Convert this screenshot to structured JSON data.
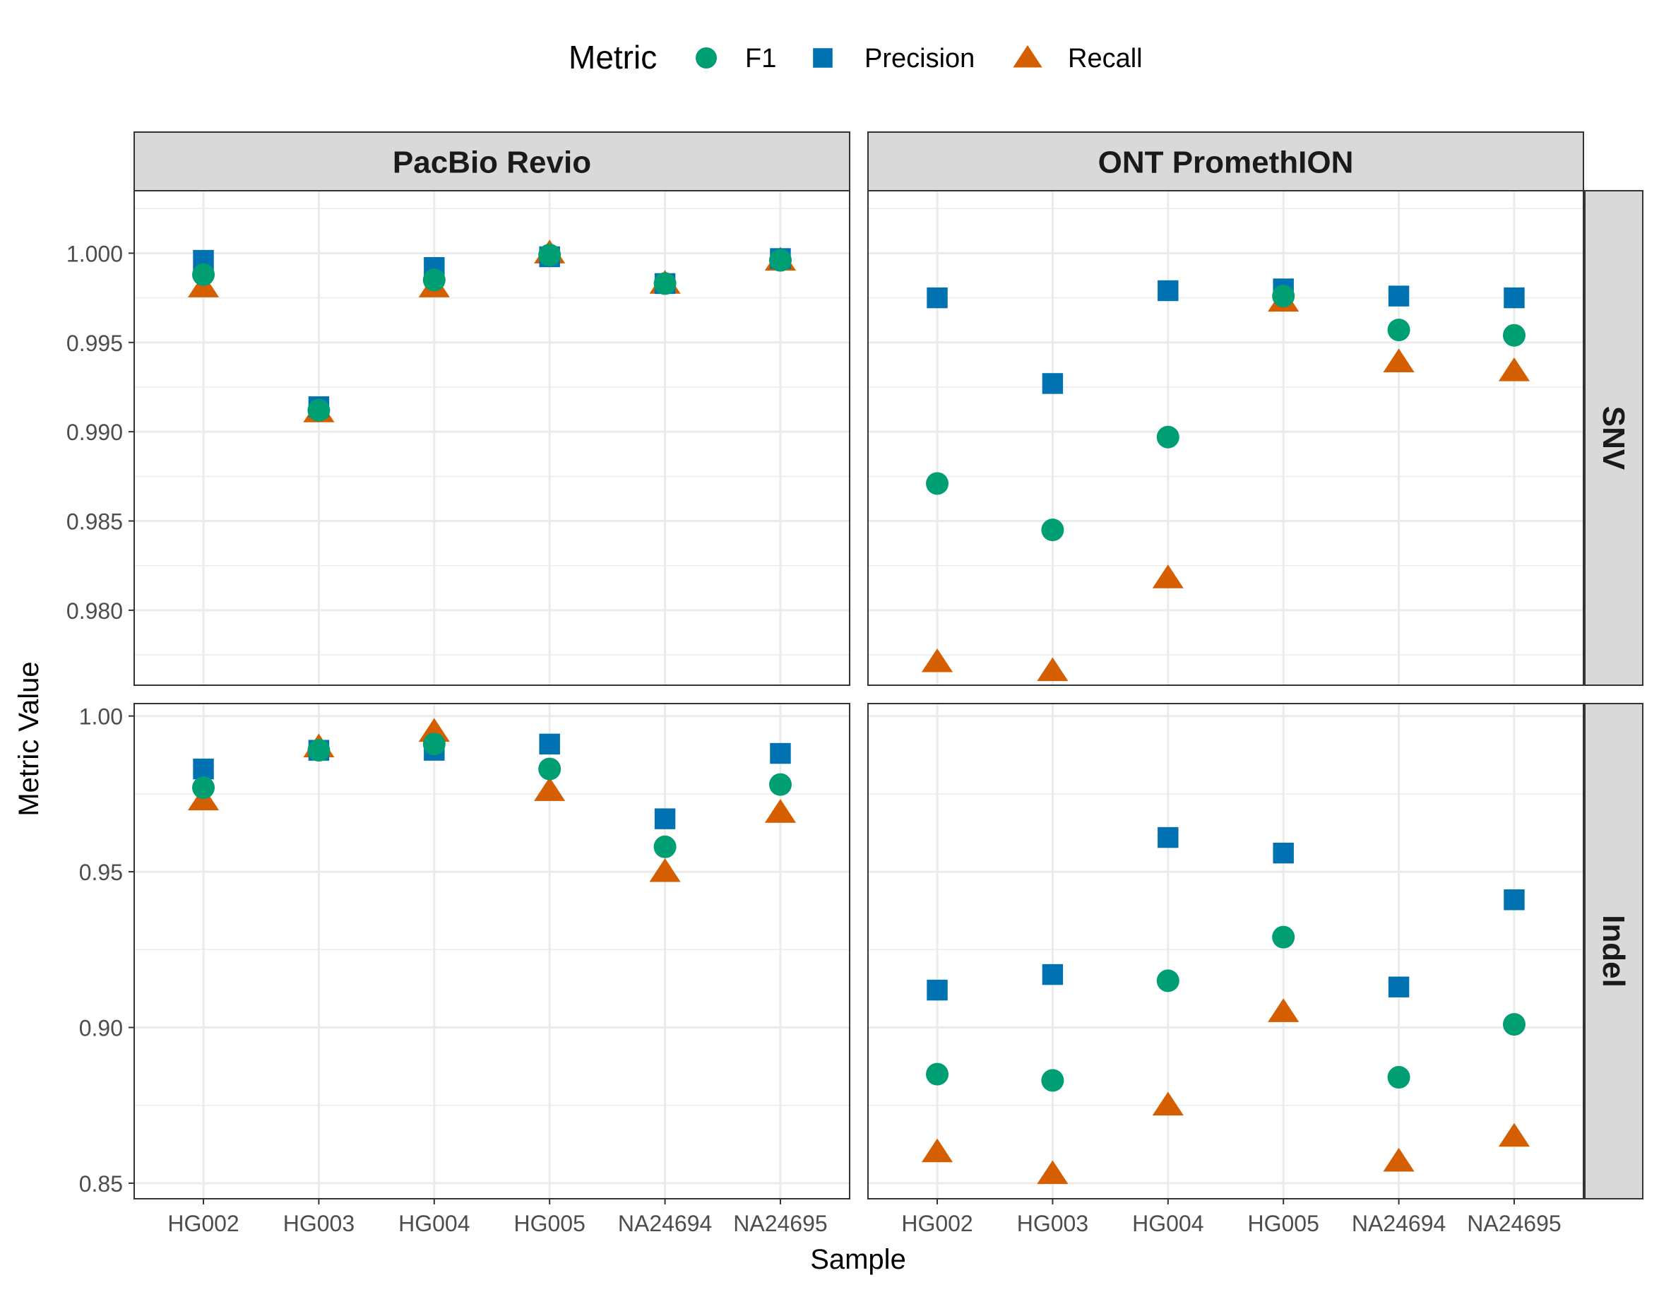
{
  "chart_data": {
    "type": "scatter",
    "xlabel": "Sample",
    "ylabel": "Metric Value",
    "categories": [
      "HG002",
      "HG003",
      "HG004",
      "HG005",
      "NA24694",
      "NA24695"
    ],
    "legend": {
      "title": "Metric",
      "placement": "top",
      "entries": [
        {
          "name": "F1",
          "shape": "circle",
          "color": "#009E73"
        },
        {
          "name": "Precision",
          "shape": "square",
          "color": "#0072B2"
        },
        {
          "name": "Recall",
          "shape": "triangle",
          "color": "#D55E00"
        }
      ]
    },
    "columns": [
      "PacBio Revio",
      "ONT PromethION"
    ],
    "rows": [
      {
        "label": "SNV",
        "ylim": [
          0.9758,
          1.0035
        ],
        "yticks": [
          0.98,
          0.985,
          0.99,
          0.995,
          1.0
        ],
        "ytick_labels": [
          "0.980",
          "0.985",
          "0.990",
          "0.995",
          "1.000"
        ]
      },
      {
        "label": "Indel",
        "ylim": [
          0.845,
          1.004
        ],
        "yticks": [
          0.85,
          0.9,
          0.95,
          1.0
        ],
        "ytick_labels": [
          "0.85",
          "0.90",
          "0.95",
          "1.00"
        ]
      }
    ],
    "panels": [
      {
        "column": "PacBio Revio",
        "row": "SNV",
        "series": [
          {
            "name": "F1",
            "values": [
              0.9988,
              0.9912,
              0.9985,
              0.9999,
              0.9983,
              0.9996
            ]
          },
          {
            "name": "Precision",
            "values": [
              0.9996,
              0.9914,
              0.9992,
              0.9998,
              0.9983,
              0.9997
            ]
          },
          {
            "name": "Recall",
            "values": [
              0.9981,
              0.9911,
              0.9981,
              1.0,
              0.9983,
              0.9996
            ]
          }
        ]
      },
      {
        "column": "ONT PromethION",
        "row": "SNV",
        "series": [
          {
            "name": "F1",
            "values": [
              0.9871,
              0.9845,
              0.9897,
              0.9976,
              0.9957,
              0.9954
            ]
          },
          {
            "name": "Precision",
            "values": [
              0.9975,
              0.9927,
              0.9979,
              0.998,
              0.9976,
              0.9975
            ]
          },
          {
            "name": "Recall",
            "values": [
              0.9771,
              0.9766,
              0.9818,
              0.9973,
              0.9939,
              0.9934
            ]
          }
        ]
      },
      {
        "column": "PacBio Revio",
        "row": "Indel",
        "series": [
          {
            "name": "F1",
            "values": [
              0.977,
              0.989,
              0.991,
              0.983,
              0.958,
              0.978
            ]
          },
          {
            "name": "Precision",
            "values": [
              0.983,
              0.989,
              0.989,
              0.991,
              0.967,
              0.988
            ]
          },
          {
            "name": "Recall",
            "values": [
              0.973,
              0.99,
              0.995,
              0.976,
              0.95,
              0.969
            ]
          }
        ]
      },
      {
        "column": "ONT PromethION",
        "row": "Indel",
        "series": [
          {
            "name": "F1",
            "values": [
              0.885,
              0.883,
              0.915,
              0.929,
              0.884,
              0.901
            ]
          },
          {
            "name": "Precision",
            "values": [
              0.912,
              0.917,
              0.961,
              0.956,
              0.913,
              0.941
            ]
          },
          {
            "name": "Recall",
            "values": [
              0.86,
              0.853,
              0.875,
              0.905,
              0.857,
              0.865
            ]
          }
        ]
      }
    ],
    "grid": true
  }
}
